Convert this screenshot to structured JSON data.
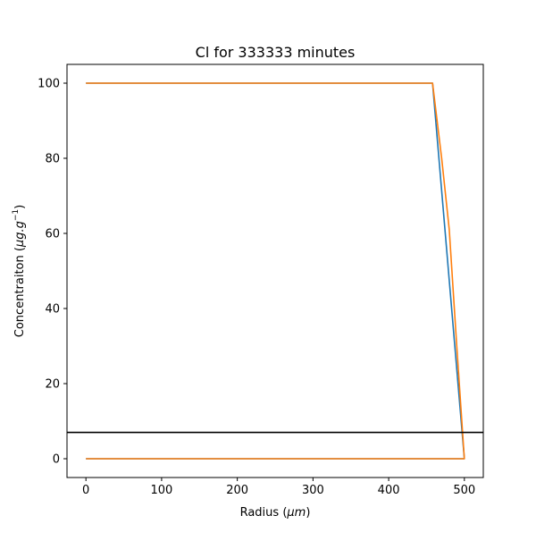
{
  "chart_data": {
    "type": "line",
    "title": "Cl for 333333 minutes",
    "xlabel_prefix": "Radius (",
    "xlabel_unit": "μm",
    "xlabel_suffix": ")",
    "ylabel_prefix": "Concentraiton (",
    "ylabel_unit": "μg.g",
    "ylabel_exp": "−1",
    "ylabel_suffix": ")",
    "xlim": [
      -25,
      525
    ],
    "ylim": [
      -5,
      105
    ],
    "xticks": [
      0,
      100,
      200,
      300,
      400,
      500
    ],
    "yticks": [
      0,
      20,
      40,
      60,
      80,
      100
    ],
    "grid": false,
    "series": [
      {
        "color": "#1f77b4",
        "x": [
          0,
          458,
          500,
          0
        ],
        "y": [
          100,
          100,
          0,
          0
        ]
      },
      {
        "color": "#ff7f0e",
        "x": [
          0,
          458,
          470,
          480,
          490,
          500,
          0
        ],
        "y": [
          100,
          100,
          80,
          61,
          30,
          0,
          0
        ]
      }
    ],
    "hlines": [
      {
        "y": 7,
        "color": "#000000"
      }
    ]
  }
}
